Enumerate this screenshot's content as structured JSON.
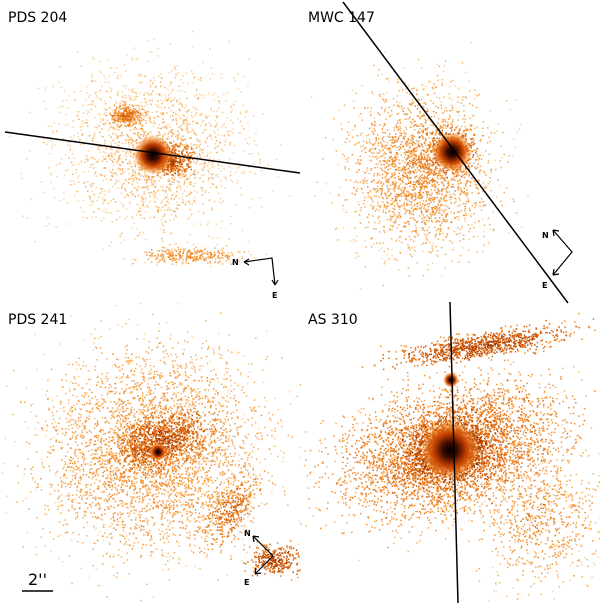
{
  "panels": [
    {
      "label": "PDS 204",
      "compass": {
        "north": "N",
        "east": "E"
      }
    },
    {
      "label": "MWC 147",
      "compass": {
        "north": "N",
        "east": "E"
      }
    },
    {
      "label": "PDS 241",
      "compass": {
        "north": "N",
        "east": "E"
      }
    },
    {
      "label": "AS 310"
    }
  ],
  "scale_bar": {
    "label": "2''"
  },
  "colors": {
    "core": "#1a0500",
    "mid": "#c84a00",
    "faint": "#f5a030"
  }
}
